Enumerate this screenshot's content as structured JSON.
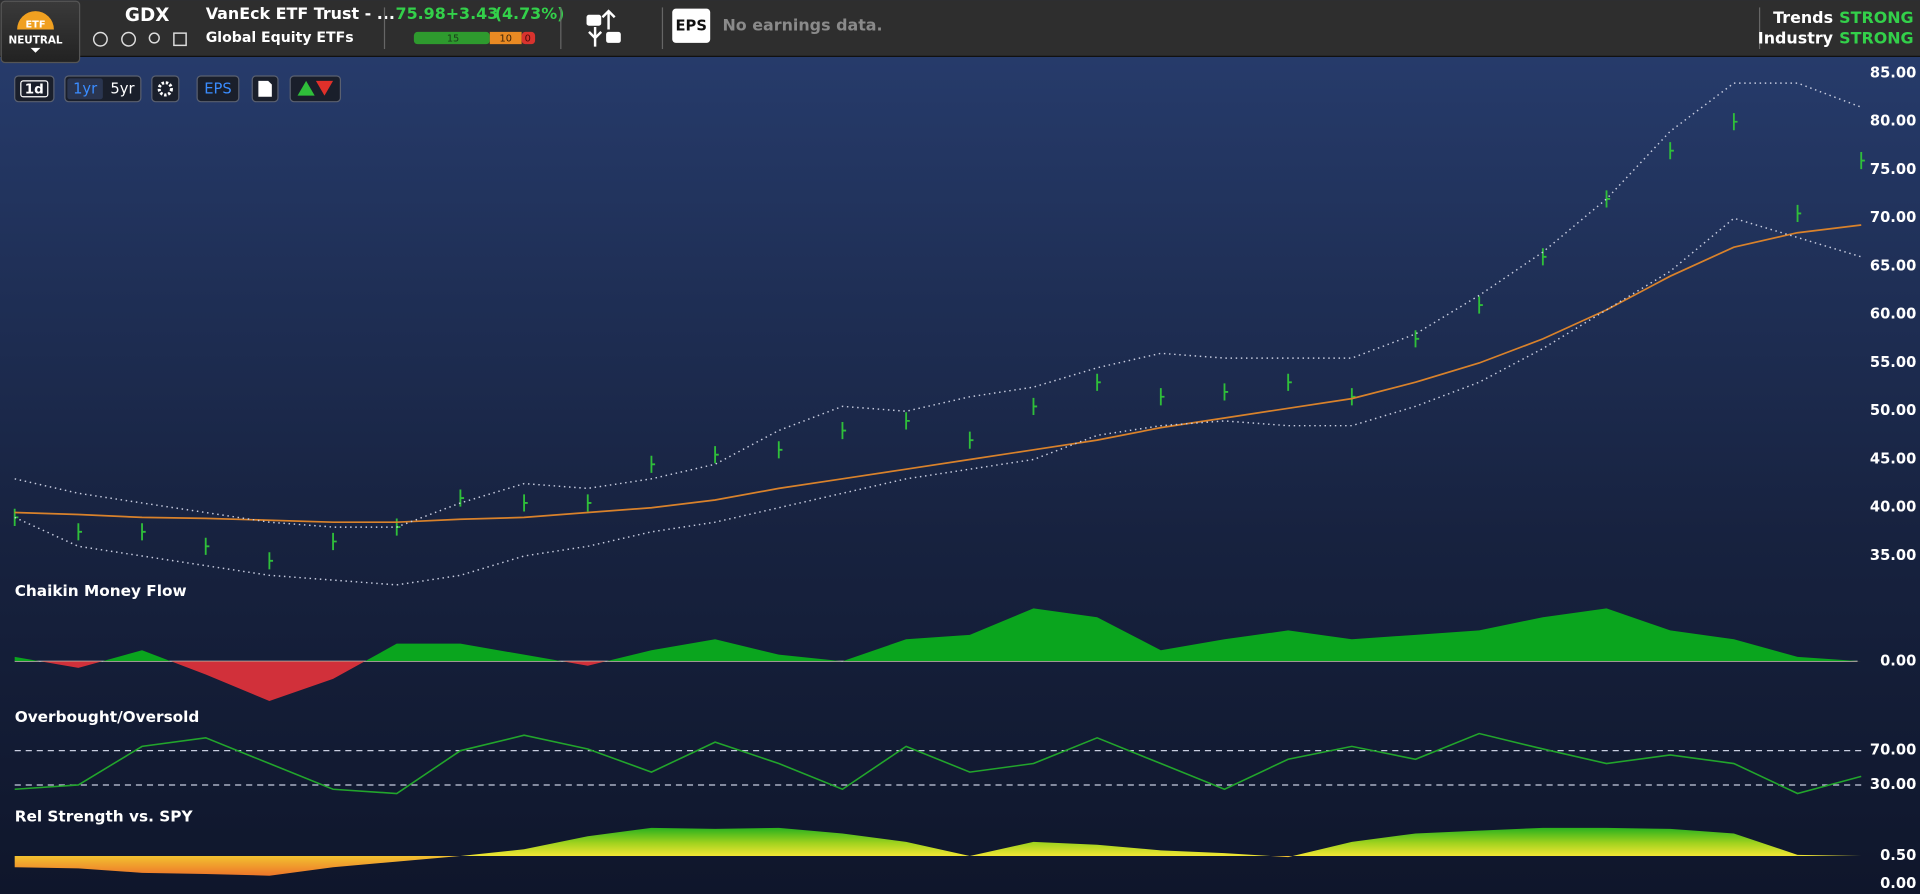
{
  "header": {
    "badge": {
      "label": "ETF",
      "rating": "NEUTRAL"
    },
    "symbol": "GDX",
    "name": "VanEck ETF Trust - ...",
    "category": "Global Equity ETFs",
    "price": 75.98,
    "change": "+3.43",
    "change_pct": "(4.73%)",
    "rating_counts": [
      15,
      10,
      0
    ],
    "eps_badge": "EPS",
    "eps_note": "No earnings data.",
    "trends": {
      "label": "Trends",
      "value": "STRONG"
    },
    "industry": {
      "label": "Industry",
      "value": "STRONG"
    }
  },
  "toolbar": {
    "period": "1d",
    "ranges": [
      "1yr",
      "5yr"
    ],
    "eps": "EPS"
  },
  "chart_data": [
    {
      "type": "stock",
      "ylim": [
        30,
        87
      ],
      "yticks": [
        {
          "value": 85,
          "label": "85.00"
        },
        {
          "value": 80,
          "label": "80.00"
        },
        {
          "value": 75,
          "label": "75.00"
        },
        {
          "value": 70,
          "label": "70.00"
        },
        {
          "value": 65,
          "label": "65.00"
        },
        {
          "value": 60,
          "label": "60.00"
        },
        {
          "value": 55,
          "label": "55.00"
        },
        {
          "value": 50,
          "label": "50.00"
        },
        {
          "value": 45,
          "label": "45.00"
        },
        {
          "value": 40,
          "label": "40.00"
        },
        {
          "value": 35,
          "label": "35.00"
        }
      ],
      "series": [
        {
          "style": "bars",
          "color": "#2fbf3a",
          "values": [
            39,
            37.5,
            37.5,
            36,
            34.5,
            36.5,
            38,
            41,
            40.5,
            40.5,
            44.5,
            45.5,
            46,
            48,
            49,
            47,
            50.5,
            53,
            51.5,
            52,
            53,
            51.5,
            57.5,
            61,
            66,
            72,
            77,
            80,
            70.5,
            75.98
          ]
        },
        {
          "style": "line",
          "color": "#d9822b",
          "values": [
            39.5,
            39.3,
            39,
            38.9,
            38.7,
            38.5,
            38.5,
            38.8,
            39,
            39.5,
            40,
            40.8,
            42,
            43,
            44,
            45,
            46,
            47,
            48.3,
            49.3,
            50.3,
            51.3,
            53,
            55,
            57.5,
            60.5,
            64,
            67,
            68.5,
            69.3
          ]
        },
        {
          "style": "dotted",
          "color": "#c8cde0",
          "values": [
            43,
            41.5,
            40.5,
            39.5,
            38.5,
            38,
            38,
            40.5,
            42.5,
            42,
            43,
            44.5,
            48,
            50.5,
            50,
            51.5,
            52.5,
            54.5,
            56,
            55.5,
            55.5,
            55.5,
            58,
            62,
            66.5,
            72,
            79,
            84,
            84,
            81.5
          ]
        },
        {
          "style": "dotted",
          "color": "#c8cde0",
          "values": [
            39,
            36,
            35,
            34,
            33,
            32.5,
            32,
            33,
            35,
            36,
            37.5,
            38.5,
            40,
            41.5,
            43,
            44,
            45,
            47.5,
            48.5,
            49,
            48.5,
            48.5,
            50.5,
            53,
            56.5,
            60.5,
            64.5,
            70,
            68,
            66
          ]
        }
      ]
    },
    {
      "type": "signed-area",
      "title": "Chaikin Money Flow",
      "ylim": [
        -0.25,
        0.25
      ],
      "yticks": [
        {
          "value": 0,
          "label": "0.00"
        }
      ],
      "grid": true,
      "color": "#0aa51e",
      "negative_color": "#d1303a",
      "values": [
        0.02,
        -0.03,
        0.05,
        -0.06,
        -0.18,
        -0.08,
        0.08,
        0.08,
        0.03,
        -0.02,
        0.05,
        0.1,
        0.03,
        0,
        0.1,
        0.12,
        0.24,
        0.2,
        0.05,
        0.1,
        0.14,
        0.1,
        0.12,
        0.14,
        0.2,
        0.24,
        0.14,
        0.1,
        0.02,
        0
      ]
    },
    {
      "type": "line",
      "title": "Overbought/Oversold",
      "ylim": [
        0,
        100
      ],
      "yticks": [
        {
          "value": 70,
          "label": "70.00"
        },
        {
          "value": 30,
          "label": "30.00"
        }
      ],
      "grid": true,
      "color": "#22a52c",
      "values": [
        25,
        30,
        75,
        85,
        55,
        25,
        20,
        70,
        88,
        72,
        45,
        80,
        55,
        25,
        75,
        45,
        55,
        85,
        55,
        25,
        60,
        75,
        60,
        90,
        72,
        55,
        65,
        55,
        20,
        40
      ]
    },
    {
      "type": "gradient-area",
      "title": "Rel Strength vs. SPY",
      "ylim": [
        -0.15,
        1.1
      ],
      "yticks": [
        {
          "value": 0.5,
          "label": "0.50"
        },
        {
          "value": 0,
          "label": "0.00"
        }
      ],
      "baseline": 0.5,
      "values": [
        0.3,
        0.28,
        0.2,
        0.18,
        0.15,
        0.3,
        0.4,
        0.5,
        0.62,
        0.85,
        1.0,
        0.98,
        1.0,
        0.9,
        0.75,
        0.5,
        0.75,
        0.7,
        0.6,
        0.55,
        0.48,
        0.75,
        0.9,
        0.95,
        1.0,
        1.0,
        0.98,
        0.9,
        0.52,
        0.5
      ]
    }
  ]
}
